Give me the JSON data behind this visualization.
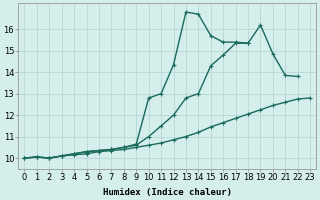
{
  "xlabel": "Humidex (Indice chaleur)",
  "bg_color": "#d4eeec",
  "grid_color": "#b8d8d5",
  "line_color": "#1a6b5a",
  "xlim": [
    -0.5,
    23.5
  ],
  "ylim": [
    9.5,
    17.2
  ],
  "xticks": [
    0,
    1,
    2,
    3,
    4,
    5,
    6,
    7,
    8,
    9,
    10,
    11,
    12,
    13,
    14,
    15,
    16,
    17,
    18,
    19,
    20,
    21,
    22,
    23
  ],
  "yticks": [
    10,
    11,
    12,
    13,
    14,
    15,
    16
  ],
  "line1_x": [
    0,
    1,
    2,
    3,
    4,
    5,
    6,
    7,
    8,
    9,
    10,
    11,
    12,
    13,
    14,
    15,
    16,
    17,
    18,
    19,
    20,
    21,
    22,
    23
  ],
  "line1_y": [
    10.0,
    10.05,
    10.0,
    10.1,
    10.15,
    10.2,
    10.3,
    10.35,
    10.4,
    10.5,
    10.6,
    10.7,
    10.85,
    11.0,
    11.2,
    11.45,
    11.65,
    11.85,
    12.05,
    12.25,
    12.45,
    12.6,
    12.75,
    12.8
  ],
  "line2_x": [
    0,
    1,
    2,
    3,
    4,
    5,
    6,
    7,
    8,
    9,
    10,
    11,
    12,
    13,
    14,
    15,
    16,
    17,
    18,
    19,
    20,
    21,
    22
  ],
  "line2_y": [
    10.0,
    10.05,
    10.0,
    10.1,
    10.2,
    10.3,
    10.35,
    10.4,
    10.5,
    10.6,
    11.0,
    11.5,
    12.0,
    12.8,
    13.0,
    14.3,
    14.8,
    15.35,
    15.35,
    16.2,
    14.85,
    13.85,
    13.8
  ],
  "line3_x": [
    0,
    1,
    2,
    3,
    4,
    5,
    6,
    7,
    8,
    9,
    10,
    11,
    12,
    13,
    14,
    15,
    16,
    17,
    18
  ],
  "line3_y": [
    10.0,
    10.05,
    10.0,
    10.1,
    10.2,
    10.3,
    10.35,
    10.4,
    10.5,
    10.65,
    12.8,
    13.0,
    14.35,
    16.8,
    16.7,
    15.7,
    15.4,
    15.4,
    15.35
  ],
  "marker_size": 2.5,
  "line_width": 1.0,
  "tick_fontsize": 6.0
}
